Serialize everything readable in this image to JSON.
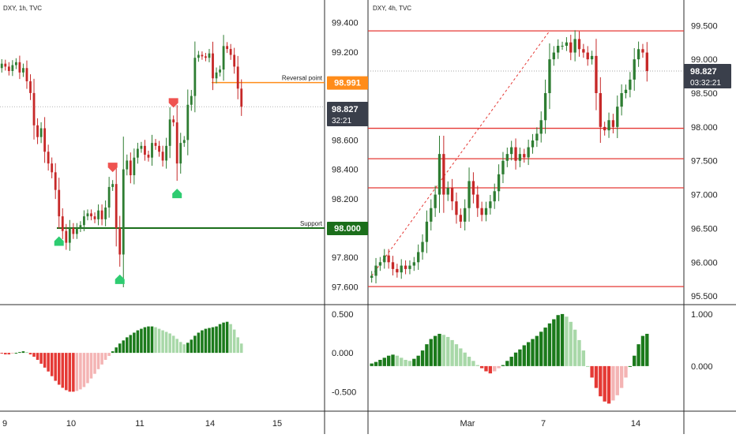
{
  "colors": {
    "up": "#2e7d32",
    "down": "#c62828",
    "hist_up_strong": "#1b7a1b",
    "hist_up_weak": "#a8d8a8",
    "hist_down_strong": "#e53935",
    "hist_down_weak": "#f4b4b4",
    "hline_red": "#e53935",
    "reversal_orange": "#ff8c1a",
    "support_green": "#1b6e1b",
    "last_price_bg": "#3a3f4b",
    "arrow_green": "#2ecc71",
    "arrow_red": "#ef5350",
    "grid": "#e5e5e5",
    "border": "#2b2b2b"
  },
  "chart_data": [
    {
      "type": "candlestick",
      "panel": "left",
      "title": "DXY, 1h, TVC",
      "ylim": [
        97.5,
        99.5
      ],
      "y_ticks": [
        "99.400",
        "99.200",
        "98.600",
        "98.400",
        "98.200",
        "97.800",
        "97.600"
      ],
      "x_ticks": [
        "9",
        "10",
        "11",
        "14",
        "15"
      ],
      "last_price": "98.827",
      "countdown": "32:21",
      "levels": [
        {
          "name": "Reversal point",
          "value": 98.991,
          "label": "98.991",
          "color": "orange"
        },
        {
          "name": "Support",
          "value": 98.0,
          "label": "98.000",
          "color": "green"
        }
      ],
      "closes": [
        99.12,
        99.1,
        99.07,
        99.11,
        99.13,
        99.06,
        99.09,
        99.0,
        98.92,
        98.7,
        98.62,
        98.68,
        98.52,
        98.44,
        98.38,
        98.26,
        98.08,
        97.98,
        97.9,
        98.0,
        97.96,
        98.0,
        98.02,
        98.08,
        98.1,
        98.08,
        98.06,
        98.12,
        98.06,
        98.14,
        98.28,
        98.3,
        98.0,
        97.82,
        98.4,
        98.46,
        98.36,
        98.48,
        98.54,
        98.56,
        98.5,
        98.48,
        98.58,
        98.56,
        98.52,
        98.46,
        98.56,
        98.74,
        98.72,
        98.44,
        98.58,
        98.6,
        98.84,
        98.9,
        99.16,
        99.18,
        99.17,
        99.16,
        99.19,
        99.02,
        99.06,
        99.08,
        99.24,
        99.22,
        99.18,
        99.1,
        98.95,
        98.827
      ],
      "down_arrows": [
        48,
        31
      ],
      "up_arrows": [
        16,
        33,
        49
      ],
      "histogram": [
        -0.01,
        -0.02,
        -0.02,
        -0.01,
        0.0,
        0.01,
        0.02,
        0.01,
        -0.02,
        -0.05,
        -0.09,
        -0.14,
        -0.19,
        -0.24,
        -0.3,
        -0.36,
        -0.41,
        -0.45,
        -0.48,
        -0.5,
        -0.5,
        -0.49,
        -0.47,
        -0.44,
        -0.39,
        -0.33,
        -0.27,
        -0.21,
        -0.15,
        -0.09,
        -0.04,
        0.02,
        0.07,
        0.12,
        0.16,
        0.2,
        0.23,
        0.26,
        0.29,
        0.31,
        0.33,
        0.34,
        0.34,
        0.33,
        0.31,
        0.29,
        0.27,
        0.25,
        0.22,
        0.18,
        0.14,
        0.11,
        0.13,
        0.17,
        0.22,
        0.26,
        0.29,
        0.31,
        0.32,
        0.33,
        0.34,
        0.37,
        0.39,
        0.4,
        0.37,
        0.3,
        0.2,
        0.12
      ],
      "hist_ticks": [
        "0.500",
        "0.000",
        "-0.500"
      ],
      "hist_ylim": [
        -0.72,
        0.58
      ]
    },
    {
      "type": "candlestick",
      "panel": "right",
      "title": "DXY, 4h, TVC",
      "ylim": [
        95.42,
        99.76
      ],
      "y_ticks": [
        "99.500",
        "99.000",
        "98.500",
        "98.000",
        "97.500",
        "97.000",
        "96.500",
        "96.000",
        "95.500"
      ],
      "x_ticks": [
        "Mar",
        "7",
        "14"
      ],
      "last_price": "98.827",
      "countdown": "03:32:21",
      "hlines": [
        99.42,
        97.98,
        97.53,
        97.1,
        95.64
      ],
      "trendline": {
        "from_index": 0,
        "from_value": 95.8,
        "to_index": 42,
        "to_value": 99.42
      },
      "closes": [
        95.8,
        95.95,
        96.0,
        96.1,
        96.0,
        95.9,
        95.85,
        95.95,
        95.9,
        95.95,
        96.0,
        96.15,
        96.3,
        96.6,
        96.8,
        97.0,
        97.6,
        97.0,
        97.1,
        96.9,
        96.7,
        96.6,
        96.8,
        97.2,
        97.0,
        96.8,
        96.7,
        96.8,
        96.9,
        97.05,
        97.3,
        97.5,
        97.6,
        97.7,
        97.5,
        97.6,
        97.55,
        97.7,
        97.8,
        97.9,
        98.1,
        98.5,
        99.0,
        99.1,
        99.2,
        99.2,
        99.25,
        99.1,
        99.3,
        99.15,
        99.1,
        99.0,
        99.05,
        98.5,
        98.0,
        97.95,
        98.1,
        98.0,
        98.3,
        98.5,
        98.55,
        98.7,
        99.0,
        99.15,
        99.1,
        98.827
      ],
      "histogram": [
        0.05,
        0.08,
        0.12,
        0.16,
        0.2,
        0.22,
        0.2,
        0.16,
        0.12,
        0.1,
        0.14,
        0.2,
        0.3,
        0.42,
        0.52,
        0.58,
        0.62,
        0.6,
        0.56,
        0.5,
        0.42,
        0.34,
        0.26,
        0.18,
        0.1,
        0.02,
        -0.04,
        -0.1,
        -0.14,
        -0.1,
        -0.04,
        0.02,
        0.1,
        0.18,
        0.26,
        0.32,
        0.4,
        0.46,
        0.52,
        0.58,
        0.66,
        0.74,
        0.82,
        0.9,
        0.98,
        1.0,
        0.95,
        0.85,
        0.7,
        0.5,
        0.3,
        0.0,
        -0.22,
        -0.42,
        -0.58,
        -0.68,
        -0.72,
        -0.66,
        -0.56,
        -0.42,
        -0.22,
        0.0,
        0.2,
        0.42,
        0.58,
        0.62
      ],
      "hist_ticks": [
        "1.000",
        "0.000"
      ],
      "hist_ylim": [
        -0.82,
        1.12
      ]
    }
  ]
}
